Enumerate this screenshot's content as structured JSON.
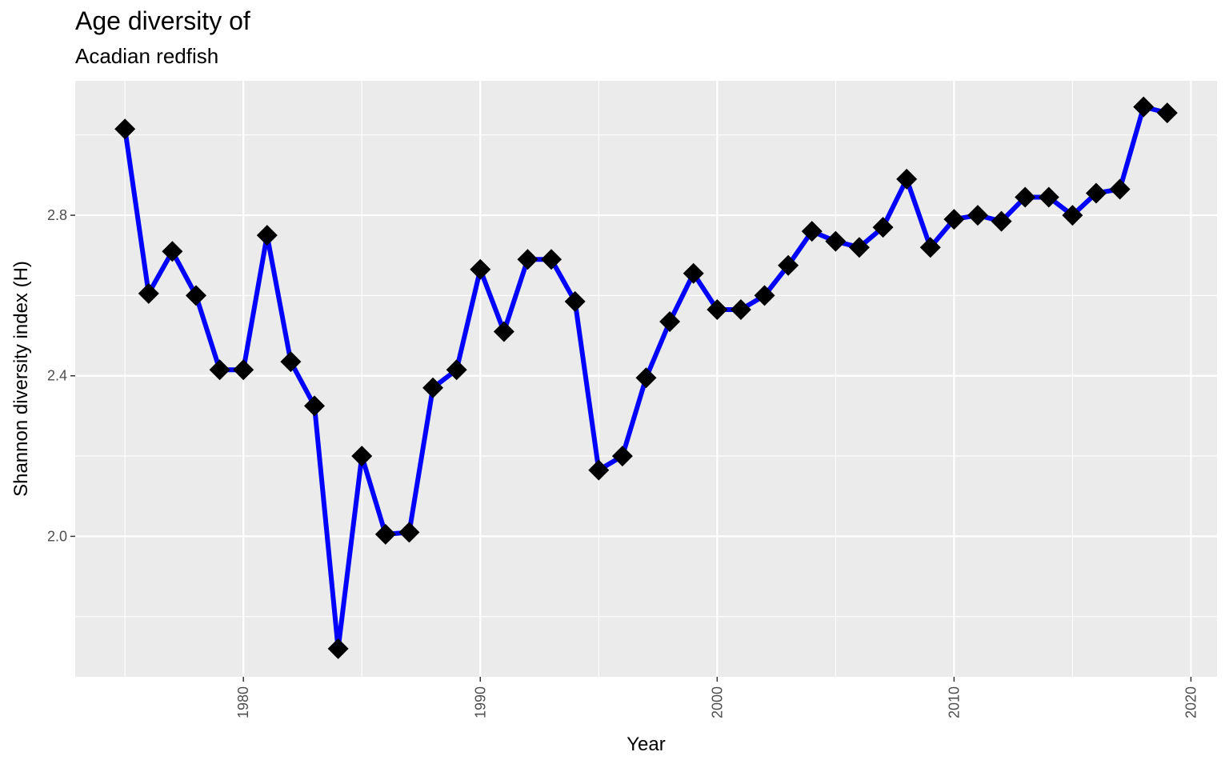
{
  "chart_data": {
    "type": "line",
    "title": "Age diversity of",
    "subtitle": "Acadian redfish",
    "xlabel": "Year",
    "ylabel": "Shannon diversity index (H)",
    "xlim": [
      1972.9,
      2021.1
    ],
    "ylim": [
      1.65,
      3.135
    ],
    "x_ticks": [
      1980,
      1990,
      2000,
      2010,
      2020
    ],
    "y_ticks": [
      2.0,
      2.4,
      2.8
    ],
    "y_tick_labels": [
      "2.0",
      "2.4",
      "2.8"
    ],
    "grid": true,
    "line_color": "#0000ff",
    "marker": "diamond",
    "marker_color": "#000000",
    "panel_background": "#ebebeb",
    "series": [
      {
        "x": [
          1975,
          1976,
          1977,
          1978,
          1979,
          1980,
          1981,
          1982,
          1983,
          1984,
          1985,
          1986,
          1987,
          1988,
          1989,
          1990,
          1991,
          1992,
          1993,
          1994,
          1995,
          1996,
          1997,
          1998,
          1999,
          2000,
          2001,
          2002,
          2003,
          2004,
          2005,
          2006,
          2007,
          2008,
          2009,
          2010,
          2011,
          2012,
          2013,
          2014,
          2015,
          2016,
          2017,
          2018,
          2019
        ],
        "y": [
          3.015,
          2.605,
          2.71,
          2.6,
          2.415,
          2.415,
          2.75,
          2.435,
          2.325,
          1.72,
          2.2,
          2.005,
          2.01,
          2.37,
          2.415,
          2.665,
          2.51,
          2.69,
          2.69,
          2.585,
          2.165,
          2.2,
          2.395,
          2.535,
          2.655,
          2.565,
          2.565,
          2.6,
          2.675,
          2.76,
          2.735,
          2.72,
          2.77,
          2.89,
          2.72,
          2.79,
          2.8,
          2.785,
          2.845,
          2.845,
          2.8,
          2.855,
          2.865,
          3.07,
          3.055
        ]
      }
    ]
  }
}
